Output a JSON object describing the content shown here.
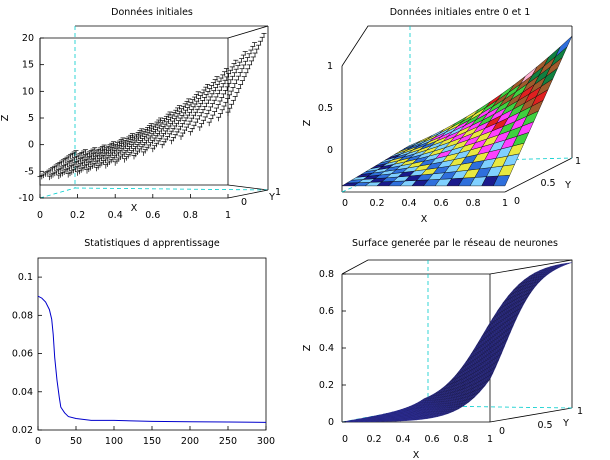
{
  "colors": {
    "line": "#0000cc",
    "axis": "#000000",
    "dash": "#00cccc",
    "surface_mesh": "#111166"
  },
  "chart_data": [
    {
      "type": "scatter3d",
      "title": "Données initiales",
      "xlabel": "X",
      "ylabel": "Y",
      "zlabel": "Z",
      "x_ticks": [
        "0",
        "0.2",
        "0.4",
        "0.6",
        "0.8",
        "1"
      ],
      "y_ticks": [
        "0",
        "1"
      ],
      "z_ticks": [
        "20",
        "15",
        "10",
        "5",
        "0",
        "-5",
        "-10"
      ],
      "xlim": [
        0,
        1
      ],
      "ylim": [
        0,
        1
      ],
      "zlim": [
        -10,
        20
      ]
    },
    {
      "type": "surface3d",
      "title": "Données initiales entre 0 et 1",
      "xlabel": "X",
      "ylabel": "Y",
      "zlabel": "Z",
      "x_ticks": [
        "0",
        "0.2",
        "0.4",
        "0.6",
        "0.8",
        "1"
      ],
      "y_ticks": [
        "0",
        "0.5",
        "1"
      ],
      "z_ticks": [
        "1",
        "0.5",
        "0"
      ],
      "xlim": [
        0,
        1
      ],
      "ylim": [
        0,
        1
      ],
      "zlim": [
        0,
        1
      ]
    },
    {
      "type": "line",
      "title": "Statistiques d apprentissage",
      "x_ticks": [
        "0",
        "50",
        "100",
        "150",
        "200",
        "250",
        "300"
      ],
      "y_ticks": [
        "0.1",
        "0.08",
        "0.06",
        "0.04",
        "0.02"
      ],
      "xlim": [
        0,
        300
      ],
      "ylim": [
        0.02,
        0.11
      ],
      "series": [
        {
          "x": [
            0,
            5,
            10,
            15,
            18,
            20,
            22,
            25,
            28,
            30,
            35,
            40,
            50,
            70,
            100,
            150,
            200,
            250,
            300
          ],
          "y": [
            0.09,
            0.089,
            0.087,
            0.083,
            0.078,
            0.07,
            0.058,
            0.046,
            0.037,
            0.032,
            0.029,
            0.027,
            0.026,
            0.025,
            0.025,
            0.0245,
            0.0243,
            0.0242,
            0.024
          ]
        }
      ]
    },
    {
      "type": "surface3d",
      "title": "Surface generée par le réseau de neurones",
      "xlabel": "X",
      "ylabel": "Y",
      "zlabel": "Z",
      "x_ticks": [
        "0",
        "0.2",
        "0.4",
        "0.6",
        "0.8",
        "1"
      ],
      "y_ticks": [
        "0",
        "0.5",
        "1"
      ],
      "z_ticks": [
        "0.8",
        "0.6",
        "0.4",
        "0.2",
        "0"
      ],
      "xlim": [
        0,
        1
      ],
      "ylim": [
        0,
        1
      ],
      "zlim": [
        0,
        0.8
      ]
    }
  ]
}
